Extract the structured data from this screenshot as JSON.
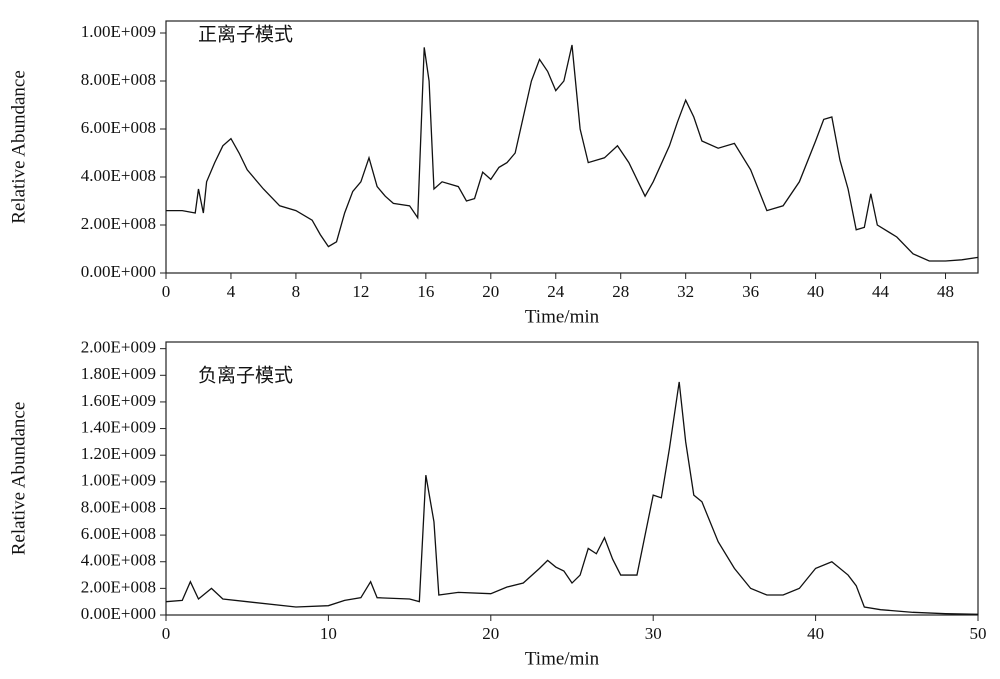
{
  "chart_data": [
    {
      "type": "line",
      "title": "正离子模式",
      "x_label": "Time/min",
      "y_label": "Relative Abundance",
      "color": "#111111",
      "x": [
        0,
        1,
        1.8,
        2,
        2.3,
        2.5,
        3,
        3.5,
        4,
        4.5,
        5,
        6,
        7,
        8,
        9,
        9.5,
        10,
        10.5,
        11,
        11.5,
        12,
        12.5,
        13,
        13.5,
        14,
        15,
        15.5,
        15.9,
        16.2,
        16.5,
        17,
        18,
        18.5,
        19,
        19.5,
        20,
        20.5,
        21,
        21.5,
        22,
        22.5,
        23,
        23.5,
        24,
        24.5,
        25,
        25.5,
        26,
        27,
        27.8,
        28.5,
        29.5,
        30,
        31,
        31.5,
        32,
        32.5,
        33,
        34,
        35,
        36,
        37,
        38,
        39,
        40,
        40.5,
        41,
        41.5,
        42,
        42.5,
        43,
        43.4,
        43.8,
        45,
        46,
        47,
        48,
        49,
        50
      ],
      "values": [
        260000000.0,
        260000000.0,
        250000000.0,
        350000000.0,
        250000000.0,
        380000000.0,
        460000000.0,
        530000000.0,
        560000000.0,
        500000000.0,
        430000000.0,
        350000000.0,
        280000000.0,
        260000000.0,
        220000000.0,
        160000000.0,
        110000000.0,
        130000000.0,
        250000000.0,
        340000000.0,
        380000000.0,
        480000000.0,
        360000000.0,
        320000000.0,
        290000000.0,
        280000000.0,
        230000000.0,
        940000000.0,
        800000000.0,
        350000000.0,
        380000000.0,
        360000000.0,
        300000000.0,
        310000000.0,
        420000000.0,
        390000000.0,
        440000000.0,
        460000000.0,
        500000000.0,
        650000000.0,
        800000000.0,
        890000000.0,
        840000000.0,
        760000000.0,
        800000000.0,
        950000000.0,
        600000000.0,
        460000000.0,
        480000000.0,
        530000000.0,
        460000000.0,
        320000000.0,
        380000000.0,
        530000000.0,
        630000000.0,
        720000000.0,
        650000000.0,
        550000000.0,
        520000000.0,
        540000000.0,
        430000000.0,
        260000000.0,
        280000000.0,
        380000000.0,
        550000000.0,
        640000000.0,
        650000000.0,
        470000000.0,
        350000000.0,
        180000000.0,
        190000000.0,
        330000000.0,
        200000000.0,
        150000000.0,
        80000000.0,
        50000000.0,
        50000000.0,
        55000000.0,
        65000000.0
      ],
      "xlim": [
        0,
        50
      ],
      "xticks": [
        0,
        4,
        8,
        12,
        16,
        20,
        24,
        28,
        32,
        36,
        40,
        44,
        48
      ],
      "ylim": [
        0,
        1050000000.0
      ],
      "yticks": [
        {
          "value": 0,
          "label": "0.00E+000"
        },
        {
          "value": 200000000.0,
          "label": "2.00E+008"
        },
        {
          "value": 400000000.0,
          "label": "4.00E+008"
        },
        {
          "value": 600000000.0,
          "label": "6.00E+008"
        },
        {
          "value": 800000000.0,
          "label": "8.00E+008"
        },
        {
          "value": 1000000000.0,
          "label": "1.00E+009"
        }
      ]
    },
    {
      "type": "line",
      "title": "负离子模式",
      "x_label": "Time/min",
      "y_label": "Relative Abundance",
      "color": "#111111",
      "x": [
        0,
        1,
        1.5,
        2,
        2.8,
        3.5,
        5,
        8,
        10,
        11,
        12,
        12.6,
        13,
        15,
        15.6,
        16,
        16.5,
        16.8,
        18,
        20,
        21,
        22,
        23,
        23.5,
        24,
        24.5,
        25,
        25.5,
        26,
        26.5,
        27,
        27.5,
        28,
        29,
        30,
        30.5,
        31,
        31.6,
        32,
        32.5,
        33,
        34,
        35,
        36,
        37,
        38,
        39,
        40,
        41,
        42,
        42.5,
        43,
        44,
        46,
        48,
        50
      ],
      "values": [
        100000000.0,
        110000000.0,
        250000000.0,
        120000000.0,
        200000000.0,
        120000000.0,
        100000000.0,
        60000000.0,
        70000000.0,
        110000000.0,
        130000000.0,
        250000000.0,
        130000000.0,
        120000000.0,
        100000000.0,
        1050000000.0,
        700000000.0,
        150000000.0,
        170000000.0,
        160000000.0,
        210000000.0,
        240000000.0,
        350000000.0,
        410000000.0,
        360000000.0,
        330000000.0,
        240000000.0,
        300000000.0,
        500000000.0,
        460000000.0,
        580000000.0,
        420000000.0,
        300000000.0,
        300000000.0,
        900000000.0,
        880000000.0,
        1250000000.0,
        1750000000.0,
        1300000000.0,
        900000000.0,
        850000000.0,
        550000000.0,
        350000000.0,
        200000000.0,
        150000000.0,
        150000000.0,
        200000000.0,
        350000000.0,
        400000000.0,
        300000000.0,
        220000000.0,
        60000000.0,
        40000000.0,
        20000000.0,
        10000000.0,
        5000000.0
      ],
      "xlim": [
        0,
        50
      ],
      "xticks": [
        0,
        10,
        20,
        30,
        40,
        50
      ],
      "ylim": [
        0,
        2050000000.0
      ],
      "yticks": [
        {
          "value": 0,
          "label": "0.00E+000"
        },
        {
          "value": 200000000.0,
          "label": "2.00E+008"
        },
        {
          "value": 400000000.0,
          "label": "4.00E+008"
        },
        {
          "value": 600000000.0,
          "label": "6.00E+008"
        },
        {
          "value": 800000000.0,
          "label": "8.00E+008"
        },
        {
          "value": 1000000000.0,
          "label": "1.00E+009"
        },
        {
          "value": 1200000000.0,
          "label": "1.20E+009"
        },
        {
          "value": 1400000000.0,
          "label": "1.40E+009"
        },
        {
          "value": 1600000000.0,
          "label": "1.60E+009"
        },
        {
          "value": 1800000000.0,
          "label": "1.80E+009"
        },
        {
          "value": 2000000000.0,
          "label": "2.00E+009"
        }
      ]
    }
  ]
}
